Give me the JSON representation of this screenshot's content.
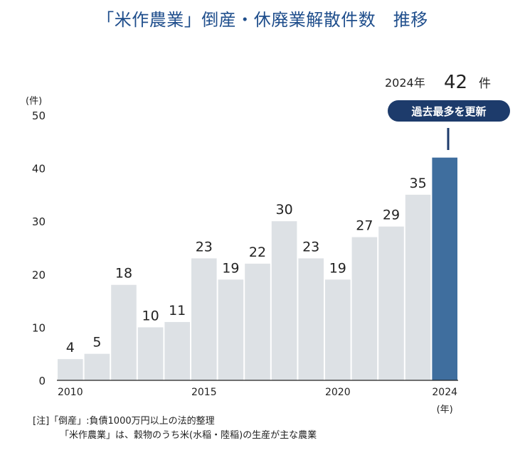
{
  "title": "「米作農業」倒産・休廃業解散件数　推移",
  "colors": {
    "bar_default": "#dde1e5",
    "bar_highlight": "#3f6e9e",
    "badge_bg": "#1d3b6b",
    "badge_text": "#ffffff",
    "axis": "#222222",
    "title": "#1f4e8c"
  },
  "chart_data": {
    "type": "bar",
    "title": "「米作農業」倒産・休廃業解散件数　推移",
    "ylabel": "(件)",
    "xlabel": "(年)",
    "ylim": [
      0,
      50
    ],
    "yticks": [
      "0",
      "10",
      "20",
      "30",
      "40",
      "50"
    ],
    "categories": [
      "2010",
      "2011",
      "2012",
      "2013",
      "2014",
      "2015",
      "2016",
      "2017",
      "2018",
      "2019",
      "2020",
      "2021",
      "2022",
      "2023",
      "2024"
    ],
    "values": [
      4,
      5,
      18,
      10,
      11,
      23,
      19,
      22,
      30,
      23,
      19,
      27,
      29,
      35,
      42
    ],
    "xtick_labels": [
      "2010",
      "2015",
      "2020",
      "2024"
    ],
    "data_labels": [
      "4",
      "5",
      "18",
      "10",
      "11",
      "23",
      "19",
      "22",
      "30",
      "23",
      "19",
      "27",
      "29",
      "35",
      ""
    ],
    "highlight_index": 14,
    "grid": false,
    "annotation": {
      "year_text": "2024年",
      "value_text": "42",
      "unit_text": "件",
      "badge_text": "過去最多を更新"
    }
  },
  "footnote": {
    "line1": "[注]「倒産」:負債1000万円以上の法的整理",
    "line2": "「米作農業」は、穀物のうち米(水稲・陸稲)の生産が主な農業"
  }
}
